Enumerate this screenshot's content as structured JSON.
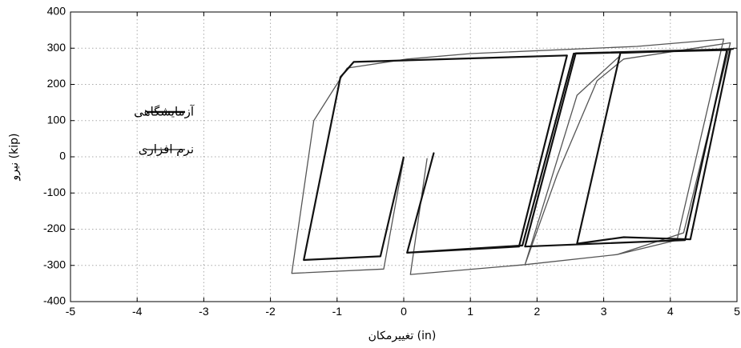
{
  "chart_data": {
    "type": "line",
    "title": "",
    "xlabel": "تغییرمکان (in)",
    "ylabel": "نیرو (kip)",
    "xlim": [
      -5,
      5
    ],
    "ylim": [
      -400,
      400
    ],
    "xticks": [
      -5,
      -4,
      -3,
      -2,
      -1,
      0,
      1,
      2,
      3,
      4,
      5
    ],
    "yticks": [
      -400,
      -300,
      -200,
      -100,
      0,
      100,
      200,
      300,
      400
    ],
    "grid": true,
    "legend_position": "left",
    "series": [
      {
        "name": "آزمایشگاهی",
        "color": "#111111",
        "points": [
          [
            0.0,
            0
          ],
          [
            -0.35,
            -275
          ],
          [
            -1.5,
            -285
          ],
          [
            -0.95,
            220
          ],
          [
            -0.75,
            262
          ],
          [
            2.45,
            280
          ],
          [
            1.73,
            -248
          ],
          [
            0.05,
            -265
          ],
          [
            0.45,
            10
          ],
          [
            0.05,
            -265
          ],
          [
            1.78,
            -245
          ],
          [
            2.55,
            285
          ],
          [
            4.85,
            295
          ],
          [
            4.22,
            -230
          ],
          [
            1.82,
            -248
          ],
          [
            2.58,
            286
          ],
          [
            4.9,
            297
          ],
          [
            4.3,
            -228
          ],
          [
            3.3,
            -222
          ],
          [
            2.6,
            -240
          ],
          [
            3.25,
            287
          ],
          [
            4.95,
            298
          ]
        ]
      },
      {
        "name": "نرم افزاری",
        "color": "#555555",
        "points": [
          [
            0.0,
            -5
          ],
          [
            -0.3,
            -310
          ],
          [
            -1.68,
            -322
          ],
          [
            -1.35,
            100
          ],
          [
            -0.85,
            245
          ],
          [
            0.05,
            270
          ],
          [
            1.0,
            285
          ],
          [
            3.5,
            305
          ],
          [
            4.8,
            325
          ],
          [
            4.1,
            -230
          ],
          [
            3.2,
            -270
          ],
          [
            1.82,
            -298
          ],
          [
            0.1,
            -325
          ],
          [
            0.35,
            -5
          ],
          [
            0.1,
            -325
          ],
          [
            1.82,
            -298
          ],
          [
            2.3,
            -50
          ],
          [
            2.9,
            210
          ],
          [
            3.3,
            270
          ],
          [
            4.9,
            315
          ],
          [
            4.2,
            -210
          ],
          [
            3.2,
            -270
          ],
          [
            1.82,
            -298
          ],
          [
            2.6,
            170
          ],
          [
            3.25,
            280
          ]
        ]
      }
    ]
  }
}
